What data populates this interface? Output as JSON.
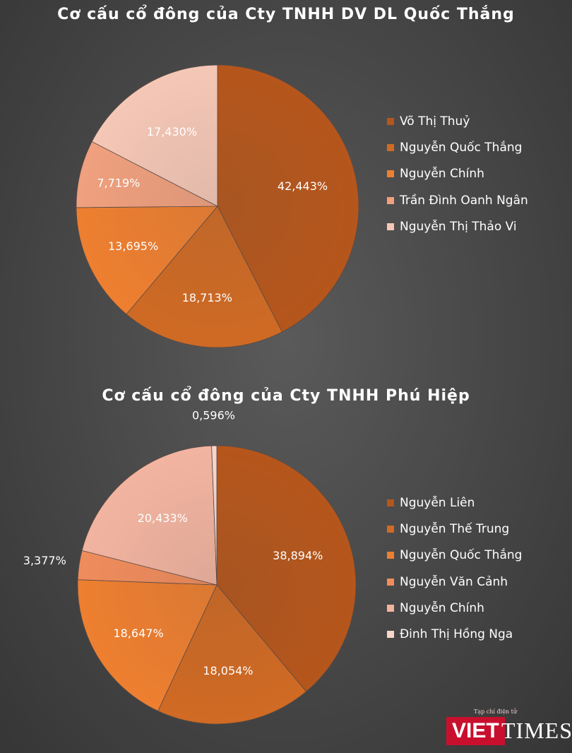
{
  "chart_data": [
    {
      "type": "pie",
      "title": "Cơ cấu cổ đông của Cty TNHH DV DL Quốc Thắng",
      "legend_position": "right",
      "categories": [
        "Võ Thị Thuỷ",
        "Nguyễn Quốc Thắng",
        "Nguyễn Chính",
        "Trần Đình Oanh Ngân",
        "Nguyễn Thị Thảo Vi"
      ],
      "values": [
        42.443,
        18.713,
        13.695,
        7.719,
        17.43
      ],
      "labels": [
        "42,443%",
        "18,713%",
        "13,695%",
        "7,719%",
        "17,430%"
      ],
      "colors": [
        "#b5561c",
        "#cf6a24",
        "#ee7f30",
        "#f0a07e",
        "#f5c7b6"
      ]
    },
    {
      "type": "pie",
      "title": "Cơ cấu cổ đông của Cty TNHH Phú Hiệp",
      "legend_position": "right",
      "categories": [
        "Nguyễn Liên",
        "Nguyễn Thế Trung",
        "Nguyễn Quốc Thắng",
        "Nguyễn Văn Cảnh",
        "Nguyễn Chính",
        "Đinh Thị Hồng Nga"
      ],
      "values": [
        38.894,
        18.054,
        18.647,
        3.377,
        20.433,
        0.596
      ],
      "labels": [
        "38,894%",
        "18,054%",
        "18,647%",
        "3,377%",
        "20,433%",
        "0,596%"
      ],
      "colors": [
        "#b5561c",
        "#d06a24",
        "#ee7f30",
        "#f08c5c",
        "#f2b4a0",
        "#f8d6cc"
      ]
    }
  ],
  "watermark": {
    "tagline": "Tạp chí điện tử",
    "brand_viet": "VIET",
    "brand_times": "TIMES"
  }
}
